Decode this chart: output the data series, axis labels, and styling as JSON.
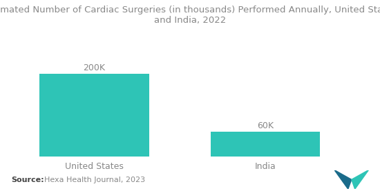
{
  "categories": [
    "United States",
    "India"
  ],
  "values": [
    200,
    60
  ],
  "labels": [
    "200K",
    "60K"
  ],
  "bar_color": "#2EC4B6",
  "title_line1": "Estimated Number of Cardiac Surgeries (in thousands) Performed Annually, United States",
  "title_line2": "and India, 2022",
  "title_fontsize": 9.5,
  "title_color": "#888888",
  "source_bold": "Source:",
  "source_text": "  Hexa Health Journal, 2023",
  "source_fontsize": 8,
  "background_color": "#ffffff",
  "ylim": [
    0,
    240
  ],
  "label_color": "#888888",
  "label_fontsize": 9,
  "xtick_fontsize": 9,
  "xtick_color": "#888888"
}
